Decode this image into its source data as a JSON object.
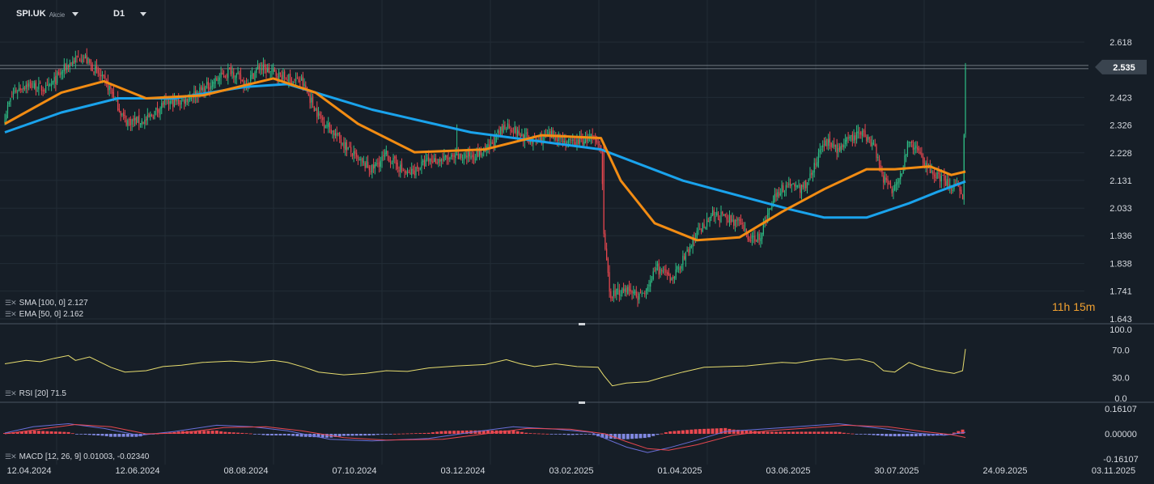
{
  "header": {
    "symbol": "SPI.UK",
    "instrument_type": "Akcie",
    "timeframe": "D1"
  },
  "countdown": "11h 15m",
  "colors": {
    "background": "#161e27",
    "grid": "#222c36",
    "up_candle": "#2ebd85",
    "down_candle": "#e8474f",
    "sma": "#1aa3ec",
    "ema": "#f28c13",
    "rsi": "#e6dc6e",
    "macd_line": "#6a6fd8",
    "signal_line": "#e8474f",
    "hist_pos": "#e8474f",
    "hist_neg": "#8088e0",
    "price_tag": "#3a444f"
  },
  "indicators": {
    "sma_label": "SMA [100, 0] 2.127",
    "ema_label": "EMA [50, 0] 2.162",
    "rsi_label": "RSI [20] 71.5",
    "macd_label": "MACD [12, 26, 9] 0.01003, -0.02340"
  },
  "chart_data": [
    {
      "type": "candlestick",
      "title": "SPI.UK",
      "xlabel": "",
      "ylabel": "",
      "x_tick_labels": [
        "12.04.2024",
        "12.06.2024",
        "08.08.2024",
        "07.10.2024",
        "03.12.2024",
        "03.02.2025",
        "01.04.2025",
        "03.06.2025",
        "30.07.2025",
        "24.09.2025",
        "03.11.2025"
      ],
      "y_tick_labels": [
        "2.618",
        "2.423",
        "2.326",
        "2.228",
        "2.131",
        "2.033",
        "1.936",
        "1.838",
        "1.741",
        "1.643"
      ],
      "y_range": [
        1.643,
        2.66
      ],
      "last_price_label": "2.535",
      "price_path": [
        [
          0,
          2.36
        ],
        [
          6,
          2.44
        ],
        [
          15,
          2.47
        ],
        [
          30,
          2.45
        ],
        [
          45,
          2.54
        ],
        [
          55,
          2.57
        ],
        [
          62,
          2.53
        ],
        [
          75,
          2.45
        ],
        [
          85,
          2.34
        ],
        [
          100,
          2.34
        ],
        [
          112,
          2.4
        ],
        [
          125,
          2.41
        ],
        [
          140,
          2.45
        ],
        [
          160,
          2.52
        ],
        [
          170,
          2.47
        ],
        [
          180,
          2.53
        ],
        [
          200,
          2.49
        ],
        [
          210,
          2.48
        ],
        [
          222,
          2.36
        ],
        [
          240,
          2.26
        ],
        [
          250,
          2.2
        ],
        [
          260,
          2.17
        ],
        [
          270,
          2.22
        ],
        [
          285,
          2.15
        ],
        [
          300,
          2.2
        ],
        [
          320,
          2.21
        ],
        [
          340,
          2.23
        ],
        [
          355,
          2.33
        ],
        [
          365,
          2.29
        ],
        [
          375,
          2.27
        ],
        [
          390,
          2.29
        ],
        [
          400,
          2.26
        ],
        [
          415,
          2.28
        ],
        [
          422,
          2.25
        ],
        [
          424,
          1.96
        ],
        [
          428,
          1.73
        ],
        [
          440,
          1.75
        ],
        [
          450,
          1.72
        ],
        [
          462,
          1.82
        ],
        [
          472,
          1.78
        ],
        [
          480,
          1.85
        ],
        [
          490,
          1.94
        ],
        [
          500,
          2.01
        ],
        [
          510,
          2.0
        ],
        [
          520,
          1.98
        ],
        [
          528,
          1.92
        ],
        [
          535,
          1.94
        ],
        [
          545,
          2.08
        ],
        [
          555,
          2.12
        ],
        [
          565,
          2.1
        ],
        [
          575,
          2.2
        ],
        [
          580,
          2.27
        ],
        [
          590,
          2.24
        ],
        [
          600,
          2.28
        ],
        [
          607,
          2.3
        ],
        [
          615,
          2.26
        ],
        [
          622,
          2.14
        ],
        [
          628,
          2.1
        ],
        [
          635,
          2.17
        ],
        [
          640,
          2.27
        ],
        [
          648,
          2.22
        ],
        [
          655,
          2.16
        ],
        [
          665,
          2.13
        ],
        [
          675,
          2.1
        ],
        [
          678,
          2.05
        ],
        [
          679,
          2.28
        ],
        [
          680,
          2.53
        ]
      ],
      "series": [
        {
          "name": "SMA [100, 0]",
          "points": [
            [
              0,
              2.3
            ],
            [
              40,
              2.37
            ],
            [
              80,
              2.42
            ],
            [
              120,
              2.42
            ],
            [
              170,
              2.46
            ],
            [
              200,
              2.47
            ],
            [
              260,
              2.38
            ],
            [
              330,
              2.3
            ],
            [
              422,
              2.24
            ],
            [
              480,
              2.13
            ],
            [
              555,
              2.03
            ],
            [
              580,
              2.0
            ],
            [
              610,
              2.0
            ],
            [
              640,
              2.05
            ],
            [
              660,
              2.09
            ],
            [
              680,
              2.127
            ]
          ]
        },
        {
          "name": "EMA [50, 0]",
          "points": [
            [
              0,
              2.33
            ],
            [
              40,
              2.44
            ],
            [
              70,
              2.48
            ],
            [
              100,
              2.42
            ],
            [
              140,
              2.43
            ],
            [
              190,
              2.49
            ],
            [
              220,
              2.44
            ],
            [
              250,
              2.33
            ],
            [
              290,
              2.23
            ],
            [
              340,
              2.24
            ],
            [
              380,
              2.29
            ],
            [
              422,
              2.28
            ],
            [
              436,
              2.13
            ],
            [
              460,
              1.98
            ],
            [
              490,
              1.92
            ],
            [
              520,
              1.93
            ],
            [
              550,
              2.02
            ],
            [
              580,
              2.1
            ],
            [
              610,
              2.17
            ],
            [
              630,
              2.17
            ],
            [
              655,
              2.18
            ],
            [
              670,
              2.15
            ],
            [
              680,
              2.162
            ]
          ]
        }
      ]
    },
    {
      "type": "line",
      "title": "RSI [20]",
      "y_tick_labels": [
        "100.0",
        "70.0",
        "30.0",
        "0.0"
      ],
      "y_range": [
        0,
        100
      ],
      "series": [
        {
          "name": "RSI [20]",
          "points": [
            [
              0,
              50
            ],
            [
              15,
              55
            ],
            [
              25,
              53
            ],
            [
              35,
              58
            ],
            [
              45,
              62
            ],
            [
              50,
              55
            ],
            [
              60,
              60
            ],
            [
              75,
              45
            ],
            [
              85,
              38
            ],
            [
              100,
              40
            ],
            [
              112,
              46
            ],
            [
              125,
              48
            ],
            [
              140,
              52
            ],
            [
              160,
              54
            ],
            [
              175,
              52
            ],
            [
              190,
              55
            ],
            [
              200,
              52
            ],
            [
              212,
              45
            ],
            [
              222,
              38
            ],
            [
              240,
              34
            ],
            [
              255,
              36
            ],
            [
              270,
              40
            ],
            [
              285,
              39
            ],
            [
              300,
              44
            ],
            [
              320,
              47
            ],
            [
              340,
              49
            ],
            [
              355,
              56
            ],
            [
              365,
              50
            ],
            [
              375,
              46
            ],
            [
              390,
              50
            ],
            [
              405,
              46
            ],
            [
              420,
              45
            ],
            [
              424,
              33
            ],
            [
              430,
              18
            ],
            [
              440,
              22
            ],
            [
              455,
              24
            ],
            [
              465,
              30
            ],
            [
              480,
              38
            ],
            [
              495,
              45
            ],
            [
              510,
              46
            ],
            [
              525,
              47
            ],
            [
              540,
              50
            ],
            [
              550,
              52
            ],
            [
              560,
              51
            ],
            [
              575,
              56
            ],
            [
              585,
              58
            ],
            [
              595,
              55
            ],
            [
              605,
              57
            ],
            [
              615,
              52
            ],
            [
              622,
              40
            ],
            [
              630,
              38
            ],
            [
              640,
              52
            ],
            [
              648,
              46
            ],
            [
              660,
              40
            ],
            [
              672,
              36
            ],
            [
              678,
              40
            ],
            [
              680,
              71.5
            ]
          ]
        }
      ]
    },
    {
      "type": "line",
      "title": "MACD [12, 26, 9]",
      "y_tick_labels": [
        "0.16107",
        "0.00000",
        "-0.16107"
      ],
      "y_range": [
        -0.16107,
        0.16107
      ],
      "series": [
        {
          "name": "MACD",
          "points": [
            [
              0,
              0.005
            ],
            [
              20,
              0.045
            ],
            [
              45,
              0.065
            ],
            [
              70,
              0.035
            ],
            [
              95,
              -0.01
            ],
            [
              120,
              0.015
            ],
            [
              150,
              0.055
            ],
            [
              175,
              0.045
            ],
            [
              200,
              0.02
            ],
            [
              230,
              -0.035
            ],
            [
              260,
              -0.045
            ],
            [
              300,
              -0.03
            ],
            [
              330,
              0.01
            ],
            [
              360,
              0.045
            ],
            [
              390,
              0.03
            ],
            [
              415,
              0.01
            ],
            [
              425,
              -0.03
            ],
            [
              440,
              -0.085
            ],
            [
              455,
              -0.12
            ],
            [
              470,
              -0.09
            ],
            [
              490,
              -0.04
            ],
            [
              510,
              0.015
            ],
            [
              535,
              0.03
            ],
            [
              560,
              0.045
            ],
            [
              590,
              0.065
            ],
            [
              620,
              0.035
            ],
            [
              645,
              0.005
            ],
            [
              665,
              -0.01
            ],
            [
              680,
              0.01003
            ]
          ]
        },
        {
          "name": "Signal",
          "points": [
            [
              0,
              0.0
            ],
            [
              25,
              0.03
            ],
            [
              50,
              0.06
            ],
            [
              75,
              0.045
            ],
            [
              100,
              0.0
            ],
            [
              125,
              0.005
            ],
            [
              155,
              0.04
            ],
            [
              185,
              0.045
            ],
            [
              210,
              0.02
            ],
            [
              240,
              -0.025
            ],
            [
              270,
              -0.04
            ],
            [
              310,
              -0.035
            ],
            [
              340,
              0.0
            ],
            [
              370,
              0.035
            ],
            [
              400,
              0.03
            ],
            [
              425,
              0.0
            ],
            [
              440,
              -0.05
            ],
            [
              455,
              -0.095
            ],
            [
              470,
              -0.105
            ],
            [
              490,
              -0.07
            ],
            [
              515,
              -0.01
            ],
            [
              540,
              0.02
            ],
            [
              565,
              0.035
            ],
            [
              595,
              0.055
            ],
            [
              625,
              0.045
            ],
            [
              650,
              0.015
            ],
            [
              670,
              -0.005
            ],
            [
              680,
              -0.0234
            ]
          ]
        }
      ]
    }
  ]
}
